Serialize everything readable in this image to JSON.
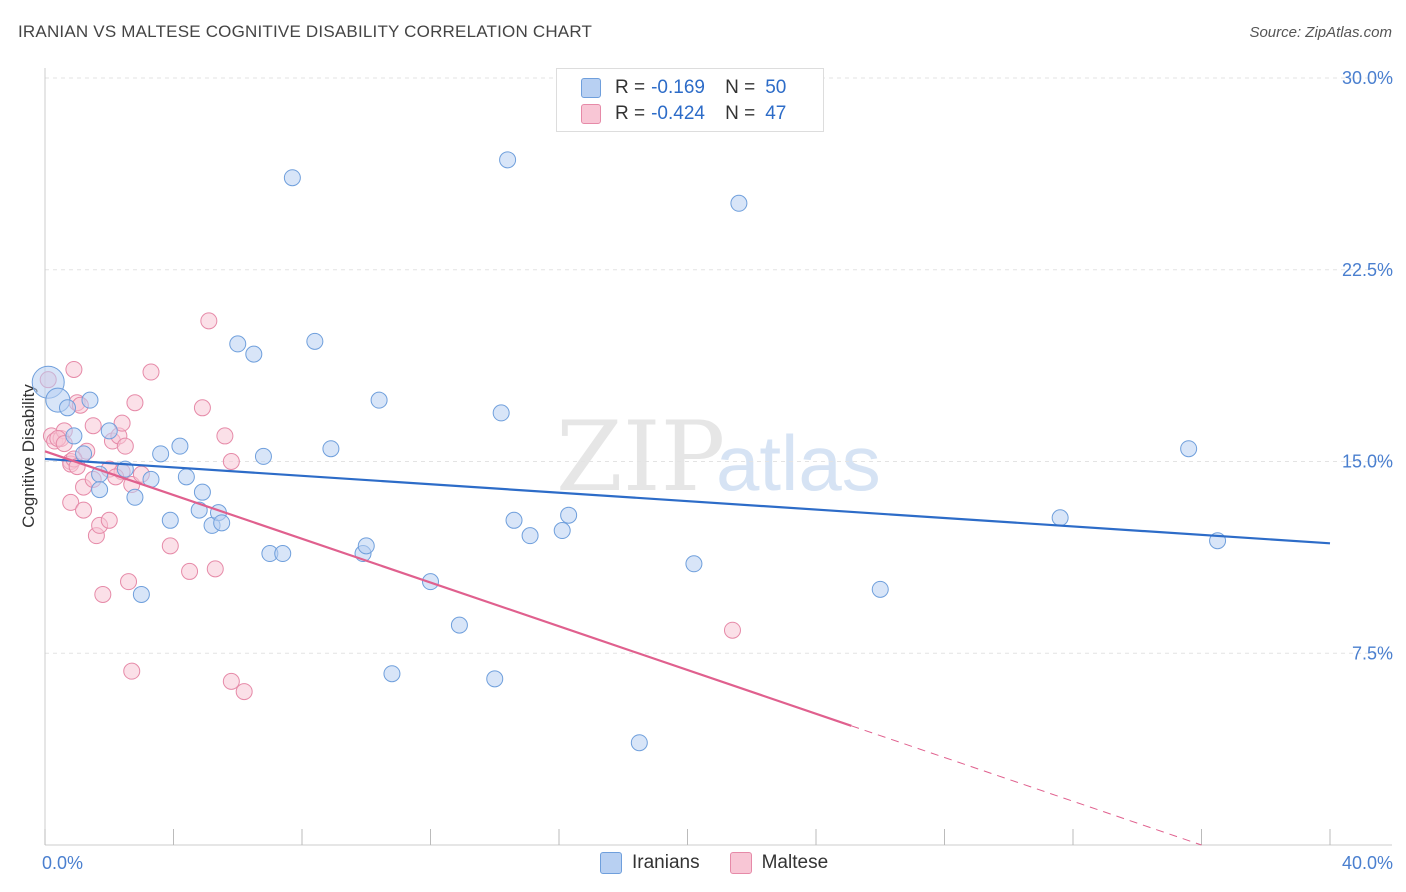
{
  "title": "IRANIAN VS MALTESE COGNITIVE DISABILITY CORRELATION CHART",
  "source": "Source: ZipAtlas.com",
  "colors": {
    "iranians_fill": "#b8d0f2",
    "iranians_stroke": "#6f9fdc",
    "iranians_line": "#2d6cc8",
    "maltese_fill": "#f8c6d5",
    "maltese_stroke": "#e68aa8",
    "maltese_line": "#e0608e",
    "grid": "#e3e3e3",
    "tick_text": "#4a7fcf"
  },
  "legend": {
    "rows": [
      {
        "r_label": "R =",
        "r_value": "-0.169",
        "n_label": "N =",
        "n_value": "50"
      },
      {
        "r_label": "R =",
        "r_value": "-0.424",
        "n_label": "N =",
        "n_value": "47"
      }
    ]
  },
  "bottom_legend": [
    "Iranians",
    "Maltese"
  ],
  "watermark": {
    "zip": "ZIP",
    "atlas": "atlas"
  },
  "chart_data": {
    "type": "scatter",
    "title": "IRANIAN VS MALTESE COGNITIVE DISABILITY CORRELATION CHART",
    "xlabel": "",
    "ylabel": "Cognitive Disability",
    "xlim": [
      0,
      40
    ],
    "ylim": [
      0,
      30
    ],
    "x_tick_labels": [
      "0.0%",
      "40.0%"
    ],
    "y_ticks": [
      7.5,
      15.0,
      22.5,
      30.0
    ],
    "y_tick_labels": [
      "7.5%",
      "15.0%",
      "22.5%",
      "30.0%"
    ],
    "grid": true,
    "series": [
      {
        "name": "Iranians",
        "r": -0.169,
        "n": 50,
        "trend": {
          "x0": 0,
          "y0": 15.1,
          "x1": 40,
          "y1": 11.8,
          "dashed_from": null
        },
        "points": [
          [
            0.1,
            18.1
          ],
          [
            0.4,
            17.4
          ],
          [
            0.7,
            17.1
          ],
          [
            1.4,
            17.4
          ],
          [
            0.9,
            16.0
          ],
          [
            1.2,
            15.3
          ],
          [
            2.0,
            16.2
          ],
          [
            1.7,
            14.5
          ],
          [
            2.5,
            14.7
          ],
          [
            1.7,
            13.9
          ],
          [
            2.8,
            13.6
          ],
          [
            3.3,
            14.3
          ],
          [
            3.6,
            15.3
          ],
          [
            4.2,
            15.6
          ],
          [
            4.4,
            14.4
          ],
          [
            3.9,
            12.7
          ],
          [
            4.8,
            13.1
          ],
          [
            4.9,
            13.8
          ],
          [
            5.2,
            12.5
          ],
          [
            5.4,
            13.0
          ],
          [
            5.5,
            12.6
          ],
          [
            3.0,
            9.8
          ],
          [
            6.0,
            19.6
          ],
          [
            6.5,
            19.2
          ],
          [
            6.8,
            15.2
          ],
          [
            7.0,
            11.4
          ],
          [
            7.4,
            11.4
          ],
          [
            7.7,
            26.1
          ],
          [
            8.4,
            19.7
          ],
          [
            8.9,
            15.5
          ],
          [
            9.9,
            11.4
          ],
          [
            10.0,
            11.7
          ],
          [
            10.4,
            17.4
          ],
          [
            10.8,
            6.7
          ],
          [
            12.0,
            10.3
          ],
          [
            12.9,
            8.6
          ],
          [
            14.0,
            6.5
          ],
          [
            14.2,
            16.9
          ],
          [
            14.4,
            26.8
          ],
          [
            14.6,
            12.7
          ],
          [
            15.1,
            12.1
          ],
          [
            16.1,
            12.3
          ],
          [
            16.3,
            12.9
          ],
          [
            18.5,
            4.0
          ],
          [
            20.2,
            11.0
          ],
          [
            21.6,
            25.1
          ],
          [
            26.0,
            10.0
          ],
          [
            31.6,
            12.8
          ],
          [
            35.6,
            15.5
          ],
          [
            36.5,
            11.9
          ]
        ]
      },
      {
        "name": "Maltese",
        "r": -0.424,
        "n": 47,
        "trend": {
          "x0": 0,
          "y0": 15.4,
          "x1": 36,
          "y1": 0.0,
          "solid_end_x": 25.1
        },
        "points": [
          [
            0.1,
            18.2
          ],
          [
            0.2,
            16.0
          ],
          [
            0.3,
            15.8
          ],
          [
            0.5,
            15.9
          ],
          [
            0.6,
            16.2
          ],
          [
            0.8,
            15.0
          ],
          [
            0.8,
            14.9
          ],
          [
            0.8,
            13.4
          ],
          [
            0.9,
            18.6
          ],
          [
            1.0,
            17.3
          ],
          [
            1.1,
            17.2
          ],
          [
            1.2,
            14.0
          ],
          [
            1.2,
            13.1
          ],
          [
            1.3,
            15.4
          ],
          [
            1.5,
            16.4
          ],
          [
            1.5,
            14.3
          ],
          [
            1.6,
            12.1
          ],
          [
            1.7,
            12.5
          ],
          [
            1.8,
            9.8
          ],
          [
            2.0,
            14.7
          ],
          [
            2.0,
            12.7
          ],
          [
            2.1,
            15.8
          ],
          [
            2.3,
            16.0
          ],
          [
            2.4,
            16.5
          ],
          [
            2.5,
            15.6
          ],
          [
            2.6,
            10.3
          ],
          [
            2.7,
            14.1
          ],
          [
            2.8,
            17.3
          ],
          [
            2.7,
            6.8
          ],
          [
            3.0,
            14.5
          ],
          [
            3.3,
            18.5
          ],
          [
            3.9,
            11.7
          ],
          [
            4.5,
            10.7
          ],
          [
            4.9,
            17.1
          ],
          [
            5.1,
            20.5
          ],
          [
            5.3,
            10.8
          ],
          [
            5.6,
            16.0
          ],
          [
            5.8,
            15.0
          ],
          [
            5.8,
            6.4
          ],
          [
            6.2,
            6.0
          ],
          [
            0.4,
            15.9
          ],
          [
            0.6,
            15.7
          ],
          [
            0.9,
            15.1
          ],
          [
            2.4,
            14.6
          ],
          [
            21.4,
            8.4
          ],
          [
            1.0,
            14.8
          ],
          [
            2.2,
            14.4
          ]
        ]
      }
    ]
  }
}
